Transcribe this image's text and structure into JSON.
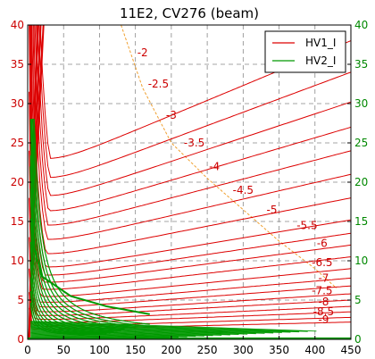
{
  "chart_data": {
    "type": "line",
    "title": "11E2, CV276 (beam)",
    "xlim": [
      0,
      450
    ],
    "ylim": [
      0,
      40
    ],
    "x_ticks": [
      0,
      50,
      100,
      150,
      200,
      250,
      300,
      350,
      400,
      450
    ],
    "y_ticks": [
      0,
      5,
      10,
      15,
      20,
      25,
      30,
      35,
      40
    ],
    "y2_ticks": [
      0,
      5,
      10,
      15,
      20,
      25,
      30,
      35,
      40
    ],
    "grid": true,
    "legend_position": "top-right",
    "series": [
      {
        "name": "HV1_I",
        "color": "#dd0000"
      },
      {
        "name": "HV2_I",
        "color": "#009900"
      }
    ],
    "boundary_line": {
      "color": "#f0a030",
      "x": [
        130,
        160,
        200,
        250,
        300,
        350,
        400,
        430
      ],
      "y": [
        40,
        32,
        25,
        20.5,
        16.5,
        12.5,
        9,
        6.5
      ]
    },
    "contour_labels": [
      {
        "text": "-2",
        "x": 160,
        "y": 36.5
      },
      {
        "text": "-2.5",
        "x": 182,
        "y": 32.5
      },
      {
        "text": "-3",
        "x": 200,
        "y": 28.5
      },
      {
        "text": "-3.5",
        "x": 232,
        "y": 25
      },
      {
        "text": "-4",
        "x": 260,
        "y": 22
      },
      {
        "text": "-4.5",
        "x": 300,
        "y": 19
      },
      {
        "text": "-5",
        "x": 340,
        "y": 16.5
      },
      {
        "text": "-5.5",
        "x": 389,
        "y": 14.5
      },
      {
        "text": "-6",
        "x": 410,
        "y": 12.2
      },
      {
        "text": "-6.5",
        "x": 410,
        "y": 9.8
      },
      {
        "text": "-7",
        "x": 412,
        "y": 7.8
      },
      {
        "text": "-7.5",
        "x": 410,
        "y": 6.2
      },
      {
        "text": "-8",
        "x": 412,
        "y": 4.8
      },
      {
        "text": "-8.5",
        "x": 412,
        "y": 3.5
      },
      {
        "text": "-9",
        "x": 412,
        "y": 2.5
      }
    ],
    "hv1_curves": [
      {
        "k": 700,
        "y_end": 38
      },
      {
        "k": 620,
        "y_end": 34
      },
      {
        "k": 540,
        "y_end": 30.2
      },
      {
        "k": 470,
        "y_end": 27
      },
      {
        "k": 400,
        "y_end": 24
      },
      {
        "k": 340,
        "y_end": 21
      },
      {
        "k": 280,
        "y_end": 18
      },
      {
        "k": 230,
        "y_end": 15.2
      },
      {
        "k": 190,
        "y_end": 13.5
      },
      {
        "k": 155,
        "y_end": 12
      },
      {
        "k": 125,
        "y_end": 10.5
      },
      {
        "k": 100,
        "y_end": 9
      },
      {
        "k": 80,
        "y_end": 7.8
      },
      {
        "k": 63,
        "y_end": 6.8
      },
      {
        "k": 48,
        "y_end": 5.8
      },
      {
        "k": 36,
        "y_end": 5
      },
      {
        "k": 26,
        "y_end": 4.2
      },
      {
        "k": 18,
        "y_end": 3.5
      },
      {
        "k": 12,
        "y_end": 2.8
      },
      {
        "k": 8,
        "y_end": 2.2
      }
    ],
    "hv2_curves": [
      {
        "k": 260,
        "x_end": 170
      },
      {
        "k": 220,
        "x_end": 160
      },
      {
        "k": 190,
        "x_end": 150
      },
      {
        "k": 160,
        "x_end": 145
      },
      {
        "k": 135,
        "x_end": 140
      },
      {
        "k": 112,
        "x_end": 135
      },
      {
        "k": 92,
        "x_end": 130
      },
      {
        "k": 75,
        "x_end": 125
      },
      {
        "k": 60,
        "x_end": 120
      },
      {
        "k": 48,
        "x_end": 115
      },
      {
        "k": 38,
        "x_end": 110
      },
      {
        "k": 30,
        "x_end": 105
      },
      {
        "k": 23,
        "x_end": 100
      },
      {
        "k": 17,
        "x_end": 95
      }
    ]
  }
}
